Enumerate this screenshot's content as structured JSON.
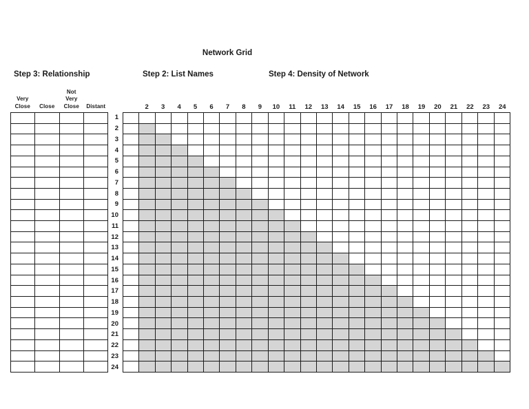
{
  "page_title": "Network Grid",
  "sections": {
    "step3_label": "Step 3: Relationship",
    "step2_label": "Step 2: List Names",
    "step4_label": "Step 4: Density of Network"
  },
  "relationship_table": {
    "column_headers": [
      [
        "Very",
        "Close"
      ],
      [
        "Close"
      ],
      [
        "Not",
        "Very",
        "Close"
      ],
      [
        "Distant"
      ]
    ],
    "num_rows": 24,
    "num_cols": 4,
    "cells_empty": true
  },
  "network_grid": {
    "col_headers": [
      "",
      "2",
      "3",
      "4",
      "5",
      "6",
      "7",
      "8",
      "9",
      "10",
      "11",
      "12",
      "13",
      "14",
      "15",
      "16",
      "17",
      "18",
      "19",
      "20",
      "21",
      "22",
      "23",
      "24"
    ],
    "num_cols": 24,
    "shading_description": "Lower-triangular gray shading: in each numbered row, cells from column 2 through the column matching the row number are shaded; the first (unlabeled) column and row 1 are unshaded.",
    "rows": [
      {
        "label": "1",
        "shaded_from": null,
        "shaded_to": null
      },
      {
        "label": "2",
        "shaded_from": 2,
        "shaded_to": 2
      },
      {
        "label": "3",
        "shaded_from": 2,
        "shaded_to": 3
      },
      {
        "label": "4",
        "shaded_from": 2,
        "shaded_to": 4
      },
      {
        "label": "5",
        "shaded_from": 2,
        "shaded_to": 5
      },
      {
        "label": "6",
        "shaded_from": 2,
        "shaded_to": 6
      },
      {
        "label": "7",
        "shaded_from": 2,
        "shaded_to": 7
      },
      {
        "label": "8",
        "shaded_from": 2,
        "shaded_to": 8
      },
      {
        "label": "9",
        "shaded_from": 2,
        "shaded_to": 9
      },
      {
        "label": "10",
        "shaded_from": 2,
        "shaded_to": 10
      },
      {
        "label": "11",
        "shaded_from": 2,
        "shaded_to": 11
      },
      {
        "label": "12",
        "shaded_from": 2,
        "shaded_to": 12
      },
      {
        "label": "13",
        "shaded_from": 2,
        "shaded_to": 13
      },
      {
        "label": "14",
        "shaded_from": 2,
        "shaded_to": 14
      },
      {
        "label": "15",
        "shaded_from": 2,
        "shaded_to": 15
      },
      {
        "label": "16",
        "shaded_from": 2,
        "shaded_to": 16
      },
      {
        "label": "17",
        "shaded_from": 2,
        "shaded_to": 17
      },
      {
        "label": "18",
        "shaded_from": 2,
        "shaded_to": 18
      },
      {
        "label": "19",
        "shaded_from": 2,
        "shaded_to": 19
      },
      {
        "label": "20",
        "shaded_from": 2,
        "shaded_to": 20
      },
      {
        "label": "21",
        "shaded_from": 2,
        "shaded_to": 21
      },
      {
        "label": "22",
        "shaded_from": 2,
        "shaded_to": 22
      },
      {
        "label": "23",
        "shaded_from": 2,
        "shaded_to": 23
      },
      {
        "label": "24",
        "shaded_from": 2,
        "shaded_to": 24
      }
    ]
  },
  "colors": {
    "shaded_cell": "#d5d5d5",
    "grid_border": "#1a1a1a",
    "text": "#1a1a1a",
    "background": "#ffffff"
  }
}
